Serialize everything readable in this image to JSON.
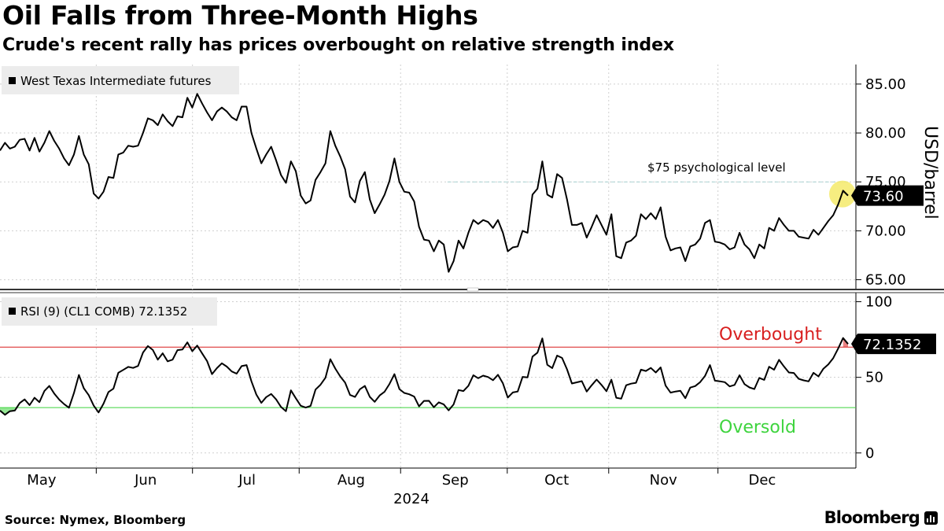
{
  "header": {
    "title": "Oil Falls from Three-Month Highs",
    "subtitle": "Crude's recent rally has prices overbought on relative strength index"
  },
  "footer": {
    "source": "Source: Nymex, Bloomberg",
    "brand": "Bloomberg"
  },
  "colors": {
    "line": "#000000",
    "overbought": "#d81f1f",
    "oversold": "#3ed43e",
    "highlight": "#f4ea6a",
    "legend_bg": "#ececec",
    "grid": "#cfcfcf",
    "threshold75": "#a9d2d2"
  },
  "chart_data": [
    {
      "type": "line",
      "title": "West Texas Intermediate futures",
      "legend": "West Texas Intermediate futures",
      "ylabel": "USD/barrel",
      "ylim": [
        64,
        87
      ],
      "yticks": [
        65,
        70,
        75,
        80,
        85
      ],
      "ytick_labels": [
        "65.00",
        "70.00",
        "75.00",
        "80.00",
        "85.00"
      ],
      "x_range": [
        0,
        163
      ],
      "xlabel": "2024",
      "months": [
        "May",
        "Jun",
        "Jul",
        "Aug",
        "Sep",
        "Oct",
        "Nov",
        "Dec"
      ],
      "month_label_x": [
        8,
        28,
        47.5,
        67.5,
        87.5,
        107,
        127.5,
        146.5
      ],
      "month_boundary_x": [
        18.5,
        37,
        57.5,
        77,
        97.5,
        117,
        138
      ],
      "values": [
        78.2,
        79.0,
        78.4,
        78.6,
        79.3,
        79.4,
        78.2,
        79.5,
        78.1,
        79.0,
        80.2,
        79.2,
        78.4,
        77.4,
        76.7,
        77.8,
        79.7,
        77.8,
        76.8,
        73.8,
        73.3,
        74.0,
        75.5,
        75.4,
        77.8,
        78.0,
        78.7,
        78.6,
        78.7,
        80.0,
        81.5,
        81.3,
        80.8,
        81.9,
        81.2,
        80.7,
        81.7,
        81.6,
        83.6,
        82.6,
        84.0,
        83.0,
        82.1,
        81.3,
        82.2,
        82.6,
        82.2,
        81.6,
        81.3,
        82.7,
        82.7,
        80.0,
        78.4,
        76.9,
        77.8,
        78.6,
        77.2,
        75.7,
        74.9,
        77.1,
        76.1,
        73.6,
        72.8,
        73.1,
        75.2,
        76.0,
        76.9,
        80.2,
        78.7,
        77.6,
        76.3,
        73.5,
        72.9,
        75.1,
        76.0,
        73.2,
        71.8,
        72.7,
        73.7,
        75.1,
        77.4,
        75.0,
        74.0,
        73.9,
        73.0,
        70.4,
        69.1,
        69.0,
        67.9,
        69.0,
        68.6,
        65.8,
        66.9,
        69.0,
        68.2,
        69.8,
        71.1,
        70.7,
        71.1,
        70.9,
        70.3,
        71.1,
        69.8,
        67.9,
        68.3,
        68.4,
        70.0,
        69.8,
        73.7,
        74.3,
        77.1,
        73.7,
        73.4,
        75.8,
        75.4,
        73.2,
        70.6,
        70.6,
        70.8,
        69.3,
        70.4,
        71.6,
        70.6,
        69.6,
        71.7,
        67.4,
        67.2,
        68.8,
        69.0,
        69.5,
        71.7,
        71.2,
        71.8,
        71.2,
        72.4,
        69.4,
        68.0,
        68.2,
        68.3,
        66.9,
        68.4,
        68.6,
        69.2,
        70.8,
        71.1,
        68.9,
        68.8,
        68.6,
        68.1,
        68.3,
        69.8,
        68.6,
        68.1,
        67.2,
        68.6,
        68.2,
        70.3,
        70.0,
        71.3,
        70.6,
        70.0,
        70.0,
        69.4,
        69.3,
        69.2,
        70.1,
        69.6,
        70.3,
        71.0,
        71.6,
        72.7,
        74.1,
        73.6
      ],
      "last_value": 73.6,
      "last_value_label": "73.60",
      "annotations": [
        {
          "text": "$75 psychological level",
          "y": 75,
          "x_from": 86,
          "x_to": 163
        }
      ]
    },
    {
      "type": "line",
      "title": "RSI (9) (CL1 COMB) 72.1352",
      "legend": "RSI (9) (CL1 COMB) 72.1352",
      "ylim": [
        -10,
        106
      ],
      "yticks": [
        0,
        50,
        100
      ],
      "ytick_labels": [
        "0",
        "50",
        "100"
      ],
      "x_range": [
        0,
        163
      ],
      "overbought_level": 70,
      "oversold_level": 30,
      "overbought_label": "Overbought",
      "oversold_label": "Oversold",
      "values": [
        28.0,
        25.2,
        27.6,
        28.0,
        33.0,
        35.4,
        31.6,
        36.5,
        33.6,
        40.9,
        44.3,
        39.3,
        35.3,
        32.3,
        29.9,
        39.6,
        51.6,
        42.8,
        38.2,
        31.3,
        26.8,
        32.6,
        40.3,
        42.5,
        53.0,
        54.9,
        56.9,
        56.2,
        57.5,
        66.4,
        70.7,
        68.1,
        61.7,
        65.9,
        60.6,
        61.7,
        68.0,
        68.4,
        73.1,
        67.3,
        71.0,
        65.8,
        60.8,
        52.1,
        56.1,
        59.3,
        57.1,
        53.9,
        52.4,
        57.4,
        58.1,
        47.4,
        38.6,
        33.1,
        36.9,
        39.0,
        35.4,
        30.4,
        27.6,
        41.4,
        36.2,
        31.2,
        30.0,
        31.1,
        41.9,
        45.1,
        49.7,
        62.0,
        55.8,
        50.6,
        46.5,
        38.3,
        37.0,
        42.1,
        44.3,
        37.1,
        33.8,
        38.0,
        40.5,
        45.6,
        52.1,
        42.2,
        39.7,
        38.8,
        37.3,
        30.8,
        34.4,
        34.5,
        30.2,
        33.5,
        32.1,
        28.2,
        32.1,
        41.6,
        40.9,
        44.4,
        51.4,
        49.4,
        51.1,
        50.2,
        48.1,
        51.7,
        46.0,
        36.6,
        40.0,
        40.6,
        50.3,
        50.0,
        63.7,
        66.3,
        75.7,
        58.3,
        56.1,
        64.4,
        62.8,
        55.3,
        45.9,
        46.7,
        47.5,
        40.6,
        44.7,
        48.5,
        45.0,
        40.8,
        48.4,
        36.5,
        35.9,
        44.8,
        45.8,
        46.4,
        55.1,
        54.2,
        56.2,
        53.2,
        56.6,
        44.5,
        39.9,
        40.6,
        41.1,
        36.2,
        43.2,
        44.2,
        46.8,
        50.9,
        58.1,
        47.8,
        47.4,
        46.8,
        44.0,
        45.0,
        51.4,
        45.5,
        43.3,
        42.2,
        49.6,
        48.3,
        57.0,
        55.0,
        61.6,
        57.2,
        53.2,
        52.9,
        49.0,
        48.0,
        47.3,
        53.0,
        50.6,
        55.7,
        58.5,
        62.7,
        69.1,
        76.0,
        72.1
      ],
      "last_value": 72.1352,
      "last_value_label": "72.1352"
    }
  ]
}
